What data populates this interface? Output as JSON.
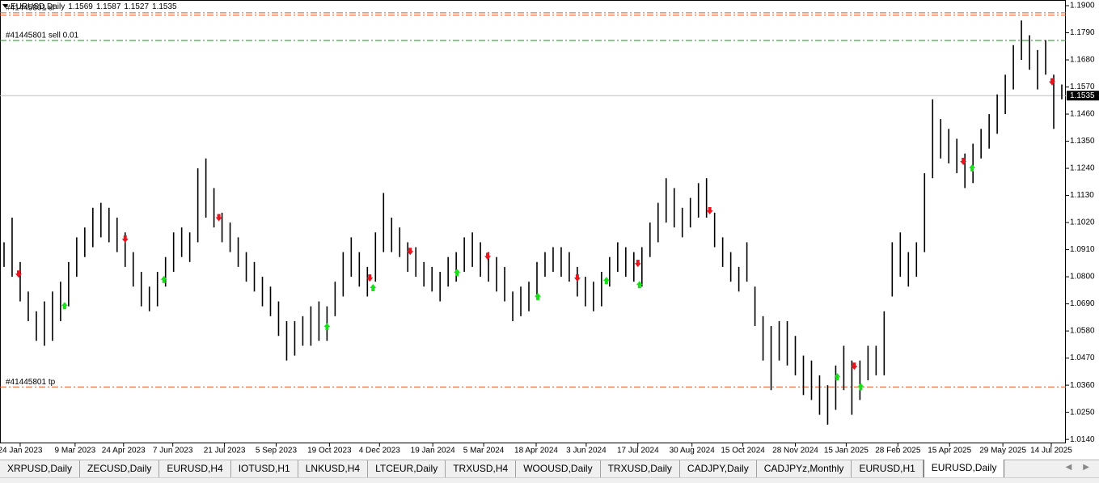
{
  "chart_data": {
    "type": "hilo",
    "symbol": "EURUSD,Daily",
    "open": 1.1569,
    "high": 1.1587,
    "low": 1.1527,
    "close": 1.1535,
    "current_price": 1.1535,
    "bar_color": "#000000",
    "highs": [
      1.094,
      1.104,
      1.086,
      1.074,
      1.066,
      1.07,
      1.074,
      1.078,
      1.086,
      1.096,
      1.1,
      1.108,
      1.11,
      1.108,
      1.104,
      1.098,
      1.09,
      1.082,
      1.076,
      1.082,
      1.088,
      1.098,
      1.1,
      1.098,
      1.124,
      1.128,
      1.116,
      1.106,
      1.102,
      1.096,
      1.09,
      1.086,
      1.08,
      1.076,
      1.07,
      1.062,
      1.062,
      1.064,
      1.068,
      1.07,
      1.068,
      1.078,
      1.09,
      1.096,
      1.09,
      1.084,
      1.098,
      1.114,
      1.104,
      1.1,
      1.094,
      1.092,
      1.086,
      1.084,
      1.082,
      1.088,
      1.09,
      1.096,
      1.098,
      1.094,
      1.09,
      1.088,
      1.084,
      1.074,
      1.076,
      1.078,
      1.086,
      1.09,
      1.092,
      1.092,
      1.09,
      1.084,
      1.08,
      1.078,
      1.082,
      1.088,
      1.094,
      1.092,
      1.09,
      1.092,
      1.102,
      1.11,
      1.12,
      1.116,
      1.108,
      1.112,
      1.118,
      1.12,
      1.106,
      1.096,
      1.09,
      1.084,
      1.094,
      1.076,
      1.064,
      1.06,
      1.062,
      1.062,
      1.056,
      1.048,
      1.046,
      1.04,
      1.036,
      1.044,
      1.052,
      1.046,
      1.046,
      1.052,
      1.052,
      1.066,
      1.094,
      1.098,
      1.09,
      1.094,
      1.122,
      1.152,
      1.144,
      1.14,
      1.136,
      1.13,
      1.134,
      1.14,
      1.146,
      1.154,
      1.162,
      1.174,
      1.184,
      1.178,
      1.172,
      1.176,
      1.162,
      1.158
    ],
    "lows": [
      1.084,
      1.08,
      1.07,
      1.062,
      1.054,
      1.052,
      1.054,
      1.062,
      1.068,
      1.08,
      1.088,
      1.092,
      1.096,
      1.094,
      1.09,
      1.084,
      1.076,
      1.068,
      1.066,
      1.068,
      1.076,
      1.082,
      1.088,
      1.086,
      1.094,
      1.104,
      1.1,
      1.094,
      1.09,
      1.084,
      1.078,
      1.074,
      1.068,
      1.064,
      1.056,
      1.046,
      1.048,
      1.052,
      1.052,
      1.054,
      1.054,
      1.064,
      1.072,
      1.08,
      1.076,
      1.072,
      1.078,
      1.09,
      1.09,
      1.088,
      1.082,
      1.08,
      1.076,
      1.074,
      1.07,
      1.076,
      1.078,
      1.082,
      1.084,
      1.08,
      1.078,
      1.074,
      1.07,
      1.062,
      1.064,
      1.066,
      1.072,
      1.08,
      1.082,
      1.08,
      1.078,
      1.072,
      1.068,
      1.066,
      1.068,
      1.076,
      1.082,
      1.08,
      1.078,
      1.076,
      1.088,
      1.094,
      1.102,
      1.1,
      1.096,
      1.1,
      1.104,
      1.104,
      1.092,
      1.084,
      1.078,
      1.074,
      1.078,
      1.06,
      1.046,
      1.034,
      1.046,
      1.044,
      1.04,
      1.032,
      1.03,
      1.024,
      1.02,
      1.026,
      1.034,
      1.024,
      1.03,
      1.038,
      1.04,
      1.04,
      1.072,
      1.08,
      1.076,
      1.08,
      1.09,
      1.12,
      1.128,
      1.126,
      1.122,
      1.116,
      1.118,
      1.128,
      1.132,
      1.138,
      1.146,
      1.156,
      1.168,
      1.164,
      1.156,
      1.162,
      1.14,
      1.152
    ],
    "sell_signals": {
      "color": "#e8141e",
      "x": [
        2.3,
        15.5,
        27.1,
        45.8,
        50.8,
        60.4,
        71.5,
        79,
        87.9,
        105.8,
        119.3,
        130.3
      ],
      "y": [
        1.0806,
        1.0948,
        1.1035,
        1.079,
        1.0898,
        1.0878,
        1.079,
        1.0849,
        1.1063,
        1.0432,
        1.1263,
        1.1586
      ]
    },
    "buy_signals": {
      "color": "#18e018",
      "x": [
        8,
        20.3,
        40.5,
        46.2,
        56.6,
        66.6,
        75.1,
        79.2,
        103.7,
        106.6,
        120.4
      ],
      "y": [
        1.0688,
        1.0794,
        1.0603,
        1.0761,
        1.0823,
        1.0725,
        1.079,
        1.0773,
        1.0399,
        1.0359,
        1.1247
      ]
    },
    "levels": [
      {
        "label": "#41445801 sl",
        "price": 1.1871,
        "color": "#e8541e"
      },
      {
        "price": 1.1861,
        "color": "#e8541e"
      },
      {
        "label": "#41445801 sell 0.01",
        "price": 1.1759,
        "color": "#1e8c1e"
      },
      {
        "label": "#41445801 tp",
        "price": 1.0353,
        "color": "#e8541e"
      }
    ],
    "xlim": [
      0,
      132
    ],
    "ylim": [
      1.0124,
      1.1923
    ],
    "xticks": [
      {
        "value": 2.5,
        "label": "24 Jan 2023"
      },
      {
        "value": 9.3,
        "label": "9 Mar 2023"
      },
      {
        "value": 15.3,
        "label": "24 Apr 2023"
      },
      {
        "value": 21.4,
        "label": "7 Jun 2023"
      },
      {
        "value": 27.8,
        "label": "21 Jul 2023"
      },
      {
        "value": 34.2,
        "label": "5 Sep 2023"
      },
      {
        "value": 40.8,
        "label": "19 Oct 2023"
      },
      {
        "value": 47,
        "label": "4 Dec 2023"
      },
      {
        "value": 53.6,
        "label": "19 Jan 2024"
      },
      {
        "value": 59.9,
        "label": "5 Mar 2024"
      },
      {
        "value": 66.4,
        "label": "18 Apr 2024"
      },
      {
        "value": 72.6,
        "label": "3 Jun 2024"
      },
      {
        "value": 79,
        "label": "17 Jul 2024"
      },
      {
        "value": 85.7,
        "label": "30 Aug 2024"
      },
      {
        "value": 92,
        "label": "15 Oct 2024"
      },
      {
        "value": 98.5,
        "label": "28 Nov 2024"
      },
      {
        "value": 104.8,
        "label": "15 Jan 2025"
      },
      {
        "value": 111.2,
        "label": "28 Feb 2025"
      },
      {
        "value": 117.6,
        "label": "15 Apr 2025"
      },
      {
        "value": 124.2,
        "label": "29 May 2025"
      },
      {
        "value": 130.2,
        "label": "14 Jul 2025"
      }
    ],
    "yticks": [
      {
        "value": 1.19,
        "label": "1.1900"
      },
      {
        "value": 1.179,
        "label": "1.1790"
      },
      {
        "value": 1.168,
        "label": "1.1680"
      },
      {
        "value": 1.157,
        "label": "1.1570"
      },
      {
        "value": 1.146,
        "label": "1.1460"
      },
      {
        "value": 1.135,
        "label": "1.1350"
      },
      {
        "value": 1.124,
        "label": "1.1240"
      },
      {
        "value": 1.113,
        "label": "1.1130"
      },
      {
        "value": 1.102,
        "label": "1.1020"
      },
      {
        "value": 1.091,
        "label": "1.0910"
      },
      {
        "value": 1.08,
        "label": "1.0800"
      },
      {
        "value": 1.069,
        "label": "1.0690"
      },
      {
        "value": 1.058,
        "label": "1.0580"
      },
      {
        "value": 1.047,
        "label": "1.0470"
      },
      {
        "value": 1.036,
        "label": "1.0360"
      },
      {
        "value": 1.025,
        "label": "1.0250"
      },
      {
        "value": 1.014,
        "label": "1.0140"
      }
    ]
  },
  "tabs": [
    "XRPUSD,Daily",
    "ZECUSD,Daily",
    "EURUSD,H4",
    "IOTUSD,H1",
    "LNKUSD,H4",
    "LTCEUR,Daily",
    "TRXUSD,H4",
    "WOOUSD,Daily",
    "TRXUSD,Daily",
    "CADJPY,Daily",
    "CADJPYz,Monthly",
    "EURUSD,H1",
    "EURUSD,Daily"
  ],
  "active_tab": 12
}
